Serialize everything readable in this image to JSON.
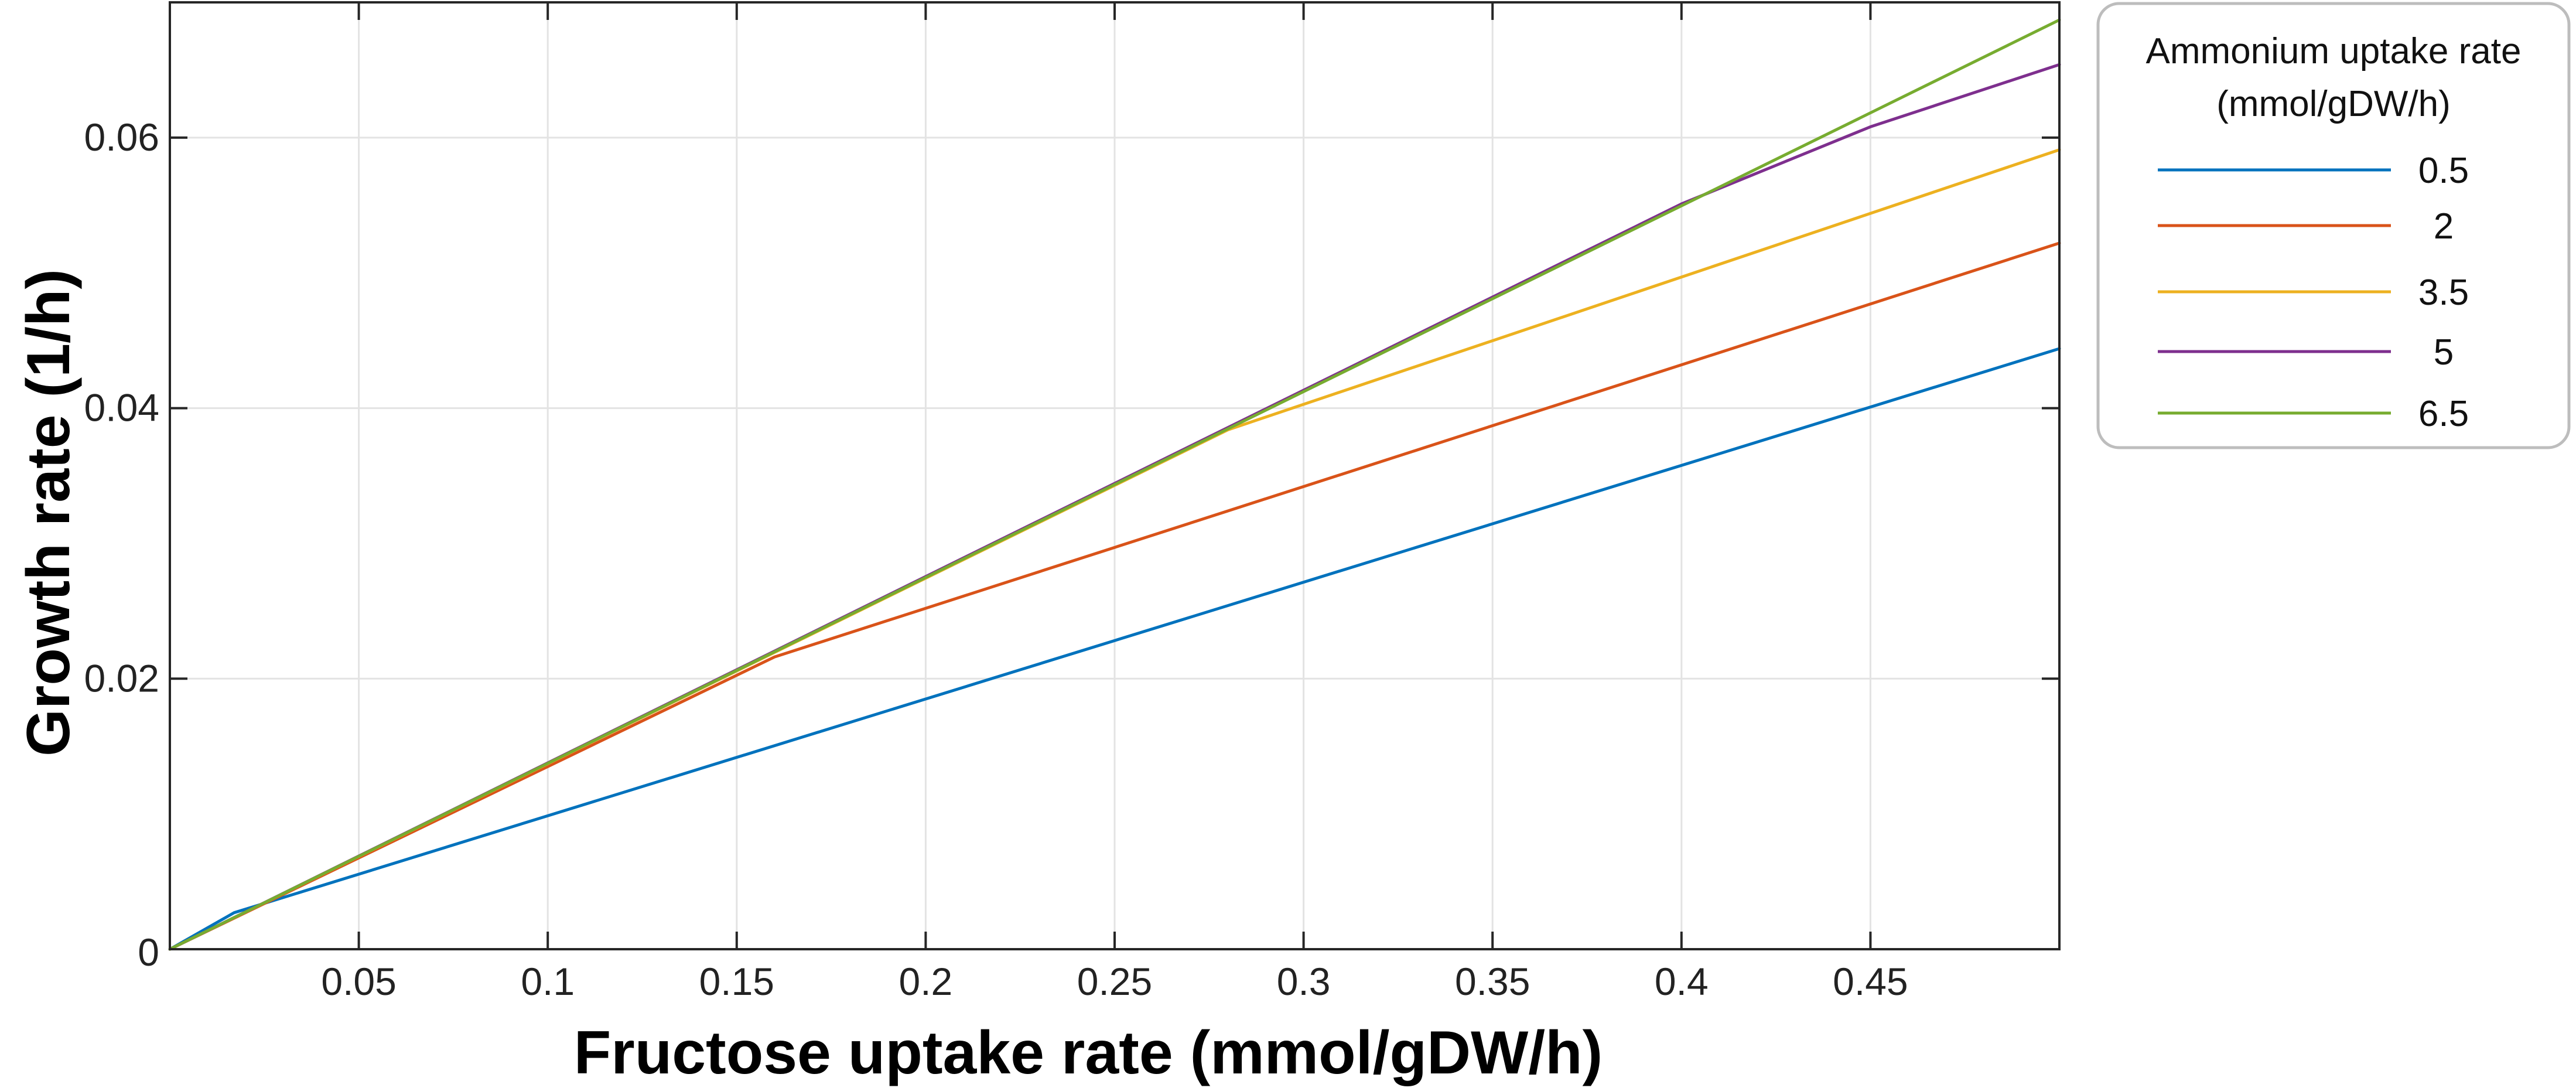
{
  "chart_data": {
    "type": "line",
    "title": "",
    "xlabel": "Fructose uptake rate (mmol/gDW/h)",
    "ylabel": "Growth rate  (1/h)",
    "xlim": [
      0,
      0.5
    ],
    "ylim": [
      0,
      0.07
    ],
    "x_ticks": [
      0.05,
      0.1,
      0.15,
      0.2,
      0.25,
      0.3,
      0.35,
      0.4,
      0.45
    ],
    "x_tick_labels": [
      "0.05",
      "0.1",
      "0.15",
      "0.2",
      "0.25",
      "0.3",
      "0.35",
      "0.4",
      "0.45"
    ],
    "y_ticks": [
      0,
      0.02,
      0.04,
      0.06
    ],
    "y_tick_labels": [
      "0",
      "0.02",
      "0.04",
      "0.06"
    ],
    "grid": true,
    "legend": {
      "title_lines": [
        "Ammonium uptake rate",
        "(mmol/gDW/h)"
      ],
      "placement": "outside-right-top"
    },
    "series": [
      {
        "name": "0.5",
        "color": "#0072BD",
        "x": [
          0,
          0.017,
          0.5
        ],
        "y": [
          0,
          0.0027,
          0.0444
        ]
      },
      {
        "name": "2",
        "color": "#D95319",
        "x": [
          0,
          0.16,
          0.5
        ],
        "y": [
          0,
          0.0216,
          0.0522
        ]
      },
      {
        "name": "3.5",
        "color": "#EDB120",
        "x": [
          0,
          0.28,
          0.5
        ],
        "y": [
          0,
          0.0384,
          0.0591
        ]
      },
      {
        "name": "5",
        "color": "#7E2F8E",
        "x": [
          0,
          0.4,
          0.45,
          0.5
        ],
        "y": [
          0,
          0.0551,
          0.0608,
          0.0654
        ]
      },
      {
        "name": "6.5",
        "color": "#77AC30",
        "x": [
          0,
          0.5
        ],
        "y": [
          0,
          0.0687
        ]
      }
    ]
  }
}
